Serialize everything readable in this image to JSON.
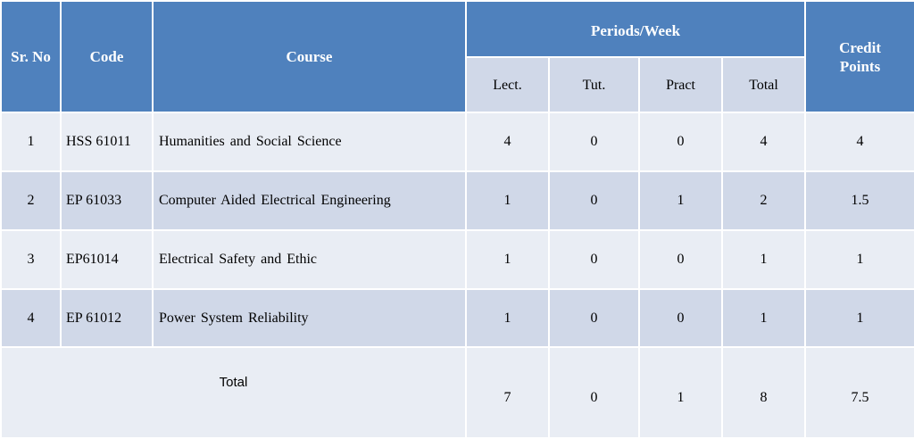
{
  "table": {
    "headers": {
      "sr_no": "Sr. No",
      "code": "Code",
      "course": "Course",
      "periods_week": "Periods/Week",
      "credit_points": "Credit Points",
      "lect": "Lect.",
      "tut": "Tut.",
      "pract": "Pract",
      "total": "Total"
    },
    "rows": [
      {
        "sr": "1",
        "code": "HSS 61011",
        "course": "Humanities and Social Science",
        "lect": "4",
        "tut": "0",
        "pract": "0",
        "total": "4",
        "credits": "4"
      },
      {
        "sr": "2",
        "code": "EP 61033",
        "course": "Computer Aided Electrical Engineering",
        "lect": "1",
        "tut": "0",
        "pract": "1",
        "total": "2",
        "credits": "1.5"
      },
      {
        "sr": "3",
        "code": "EP61014",
        "course": "Electrical Safety and Ethic",
        "lect": "1",
        "tut": "0",
        "pract": "0",
        "total": "1",
        "credits": "1"
      },
      {
        "sr": "4",
        "code": "EP 61012",
        "course": "Power System Reliability",
        "lect": "1",
        "tut": "0",
        "pract": "0",
        "total": "1",
        "credits": "1"
      }
    ],
    "total_row": {
      "label": "Total",
      "lect": "7",
      "tut": "0",
      "pract": "1",
      "total": "8",
      "credits": "7.5"
    }
  },
  "colors": {
    "header": "#4f81bd",
    "row_light": "#e9edf4",
    "row_dark": "#d0d8e8"
  }
}
